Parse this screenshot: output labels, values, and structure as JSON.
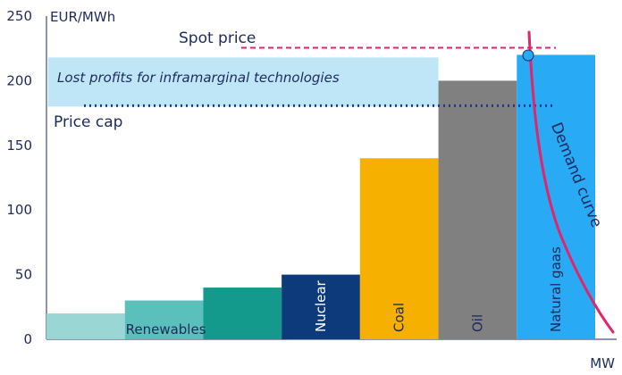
{
  "chart_data": {
    "type": "bar",
    "ylabel": "EUR/MWh",
    "xlabel": "MW",
    "ylim": [
      0,
      250
    ],
    "yticks": [
      0,
      50,
      100,
      150,
      200,
      250
    ],
    "grid": false,
    "series": [
      {
        "label": "",
        "value": 20,
        "color": "#99d6d4",
        "label_orientation": "none"
      },
      {
        "label": "Renewables",
        "value": 30,
        "color": "#5bbfbb",
        "label_orientation": "horizontal"
      },
      {
        "label": "",
        "value": 40,
        "color": "#139a8c",
        "label_orientation": "none"
      },
      {
        "label": "Nuclear",
        "value": 50,
        "color": "#0c3a7a",
        "label_orientation": "vertical"
      },
      {
        "label": "Coal",
        "value": 140,
        "color": "#f5b000",
        "label_orientation": "vertical"
      },
      {
        "label": "Oil",
        "value": 200,
        "color": "#808080",
        "label_orientation": "vertical"
      },
      {
        "label": "Natural gaas",
        "value": 220,
        "color": "#29aaf4",
        "label_orientation": "vertical"
      }
    ],
    "spot_price": {
      "label": "Spot price",
      "value": 220,
      "color": "#e2256b"
    },
    "price_cap": {
      "label": "Price cap",
      "value": 180,
      "color": "#1e3a8a"
    },
    "lost_profits": {
      "label": "Lost profits for inframarginal technologies",
      "from": 180,
      "to": 218,
      "color": "#bfe6f7"
    },
    "demand_curve": {
      "label": "Demand curve",
      "color": "#e2256b"
    },
    "intersection_marker_color": "#29aaf4"
  }
}
